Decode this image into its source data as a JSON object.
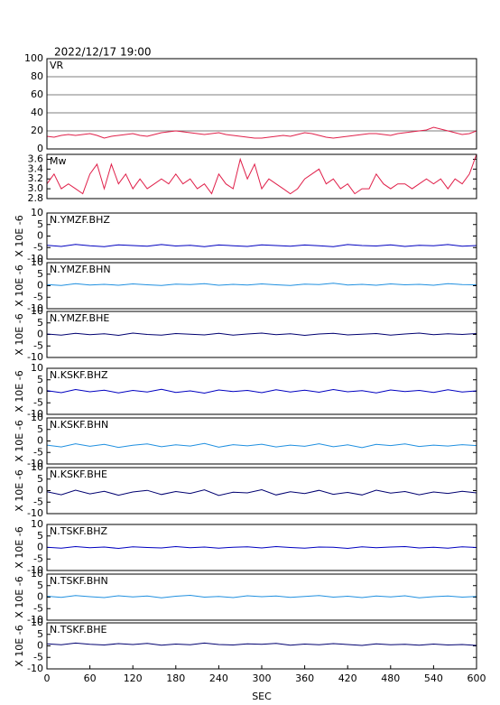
{
  "header": {
    "title": "2022/12/17 19:00"
  },
  "chart_data": [
    {
      "type": "line",
      "title": "VR",
      "color": "#e0204a",
      "grid": true,
      "xlim": [
        0,
        600
      ],
      "ylim": [
        0,
        100
      ],
      "yticks": [
        0,
        20,
        40,
        60,
        80,
        100
      ],
      "x": [
        0,
        10,
        20,
        30,
        40,
        50,
        60,
        70,
        80,
        90,
        100,
        110,
        120,
        130,
        140,
        150,
        160,
        170,
        180,
        190,
        200,
        210,
        220,
        230,
        240,
        250,
        260,
        270,
        280,
        290,
        300,
        310,
        320,
        330,
        340,
        350,
        360,
        370,
        380,
        390,
        400,
        410,
        420,
        430,
        440,
        450,
        460,
        470,
        480,
        490,
        500,
        510,
        520,
        530,
        540,
        550,
        560,
        570,
        580,
        590,
        600
      ],
      "values": [
        14,
        13,
        15,
        16,
        15,
        16,
        17,
        15,
        12,
        14,
        15,
        16,
        17,
        15,
        14,
        16,
        18,
        19,
        20,
        19,
        18,
        17,
        16,
        17,
        18,
        16,
        15,
        14,
        13,
        12,
        12,
        13,
        14,
        15,
        14,
        16,
        18,
        17,
        15,
        13,
        12,
        13,
        14,
        15,
        16,
        17,
        17,
        16,
        15,
        17,
        18,
        19,
        20,
        21,
        24,
        22,
        20,
        18,
        16,
        17,
        20
      ]
    },
    {
      "type": "line",
      "title": "Mw",
      "color": "#e0204a",
      "grid": false,
      "xlim": [
        0,
        600
      ],
      "ylim": [
        2.8,
        3.7
      ],
      "yticks": [
        2.8,
        {
          "value": 3,
          "label": "3.0"
        },
        3.2,
        3.4,
        3.6
      ],
      "x": [
        0,
        10,
        20,
        30,
        40,
        50,
        60,
        70,
        80,
        90,
        100,
        110,
        120,
        130,
        140,
        150,
        160,
        170,
        180,
        190,
        200,
        210,
        220,
        230,
        240,
        250,
        260,
        270,
        280,
        290,
        300,
        310,
        320,
        330,
        340,
        350,
        360,
        370,
        380,
        390,
        400,
        410,
        420,
        430,
        440,
        450,
        460,
        470,
        480,
        490,
        500,
        510,
        520,
        530,
        540,
        550,
        560,
        570,
        580,
        590,
        600
      ],
      "values": [
        3.1,
        3.3,
        3.0,
        3.1,
        3.0,
        2.9,
        3.3,
        3.5,
        3.0,
        3.5,
        3.1,
        3.3,
        3.0,
        3.2,
        3.0,
        3.1,
        3.2,
        3.1,
        3.3,
        3.1,
        3.2,
        3.0,
        3.1,
        2.9,
        3.3,
        3.1,
        3.0,
        3.6,
        3.2,
        3.5,
        3.0,
        3.2,
        3.1,
        3.0,
        2.9,
        3.0,
        3.2,
        3.3,
        3.4,
        3.1,
        3.2,
        3.0,
        3.1,
        2.9,
        3.0,
        3.0,
        3.3,
        3.1,
        3.0,
        3.1,
        3.1,
        3.0,
        3.1,
        3.2,
        3.1,
        3.2,
        3.0,
        3.2,
        3.1,
        3.3,
        3.7
      ]
    },
    {
      "type": "line",
      "title": "N.YMZF.BHZ",
      "ylabel": "X 10E -6",
      "color": "#0000c0",
      "xlim": [
        0,
        600
      ],
      "ylim": [
        -10,
        10
      ],
      "yticks": [
        -10,
        -5,
        0,
        5,
        10
      ],
      "x": [
        0,
        20,
        40,
        60,
        80,
        100,
        120,
        140,
        160,
        180,
        200,
        220,
        240,
        260,
        280,
        300,
        320,
        340,
        360,
        380,
        400,
        420,
        440,
        460,
        480,
        500,
        520,
        540,
        560,
        580,
        600
      ],
      "values": [
        -4,
        -4.5,
        -3.6,
        -4.2,
        -4.6,
        -3.8,
        -4.1,
        -4.4,
        -3.7,
        -4.3,
        -4,
        -4.6,
        -3.9,
        -4.2,
        -4.5,
        -3.8,
        -4.1,
        -4.4,
        -3.9,
        -4.2,
        -4.6,
        -3.7,
        -4.1,
        -4.3,
        -3.8,
        -4.5,
        -4,
        -4.2,
        -3.7,
        -4.4,
        -4.1
      ]
    },
    {
      "type": "line",
      "title": "N.YMZF.BHN",
      "ylabel": "X 10E -6",
      "color": "#2090e0",
      "xlim": [
        0,
        600
      ],
      "ylim": [
        -10,
        10
      ],
      "yticks": [
        -10,
        -5,
        0,
        5,
        10
      ],
      "x": [
        0,
        20,
        40,
        60,
        80,
        100,
        120,
        140,
        160,
        180,
        200,
        220,
        240,
        260,
        280,
        300,
        320,
        340,
        360,
        380,
        400,
        420,
        440,
        460,
        480,
        500,
        520,
        540,
        560,
        580,
        600
      ],
      "values": [
        0.5,
        0.1,
        0.9,
        0.3,
        0.6,
        0.2,
        0.8,
        0.4,
        0.1,
        0.7,
        0.5,
        0.9,
        0.2,
        0.6,
        0.3,
        0.8,
        0.4,
        0.1,
        0.7,
        0.5,
        1.1,
        0.3,
        0.6,
        0.2,
        0.8,
        0.4,
        0.6,
        0.2,
        0.9,
        0.5,
        0.4
      ]
    },
    {
      "type": "line",
      "title": "N.YMZF.BHE",
      "ylabel": "X 10E -6",
      "color": "#000070",
      "xlim": [
        0,
        600
      ],
      "ylim": [
        -10,
        10
      ],
      "yticks": [
        -10,
        -5,
        0,
        5,
        10
      ],
      "x": [
        0,
        20,
        40,
        60,
        80,
        100,
        120,
        140,
        160,
        180,
        200,
        220,
        240,
        260,
        280,
        300,
        320,
        340,
        360,
        380,
        400,
        420,
        440,
        460,
        480,
        500,
        520,
        540,
        560,
        580,
        600
      ],
      "values": [
        0.2,
        -0.3,
        0.5,
        -0.1,
        0.3,
        -0.4,
        0.6,
        0,
        -0.3,
        0.4,
        0.1,
        -0.2,
        0.5,
        -0.3,
        0.2,
        0.6,
        -0.1,
        0.3,
        -0.4,
        0.2,
        0.5,
        -0.2,
        0.1,
        0.4,
        -0.3,
        0.2,
        0.6,
        -0.1,
        0.3,
        0,
        0.4
      ]
    },
    {
      "type": "line",
      "title": "N.KSKF.BHZ",
      "ylabel": "X 10E -6",
      "color": "#0000c0",
      "xlim": [
        0,
        600
      ],
      "ylim": [
        -10,
        10
      ],
      "yticks": [
        -10,
        -5,
        0,
        5,
        10
      ],
      "x": [
        0,
        20,
        40,
        60,
        80,
        100,
        120,
        140,
        160,
        180,
        200,
        220,
        240,
        260,
        280,
        300,
        320,
        340,
        360,
        380,
        400,
        420,
        440,
        460,
        480,
        500,
        520,
        540,
        560,
        580,
        600
      ],
      "values": [
        0.3,
        -0.6,
        0.8,
        -0.2,
        0.5,
        -0.7,
        0.4,
        -0.3,
        0.9,
        -0.5,
        0.2,
        -0.8,
        0.6,
        -0.1,
        0.4,
        -0.6,
        0.7,
        -0.3,
        0.5,
        -0.4,
        0.8,
        -0.2,
        0.3,
        -0.7,
        0.6,
        -0.1,
        0.4,
        -0.5,
        0.7,
        -0.3,
        0.2
      ]
    },
    {
      "type": "line",
      "title": "N.KSKF.BHN",
      "ylabel": "X 10E -6",
      "color": "#2090e0",
      "xlim": [
        0,
        600
      ],
      "ylim": [
        -10,
        10
      ],
      "yticks": [
        -10,
        -5,
        0,
        5,
        10
      ],
      "x": [
        0,
        20,
        40,
        60,
        80,
        100,
        120,
        140,
        160,
        180,
        200,
        220,
        240,
        260,
        280,
        300,
        320,
        340,
        360,
        380,
        400,
        420,
        440,
        460,
        480,
        500,
        520,
        540,
        560,
        580,
        600
      ],
      "values": [
        -1.8,
        -2.6,
        -1.2,
        -2.3,
        -1.5,
        -2.8,
        -1.9,
        -1.3,
        -2.5,
        -1.7,
        -2.2,
        -1.1,
        -2.7,
        -1.6,
        -2.1,
        -1.4,
        -2.6,
        -1.8,
        -2.3,
        -1.2,
        -2.5,
        -1.7,
        -2.9,
        -1.5,
        -2.0,
        -1.3,
        -2.4,
        -1.8,
        -2.2,
        -1.6,
        -2.0
      ]
    },
    {
      "type": "line",
      "title": "N.KSKF.BHE",
      "ylabel": "X 10E -6",
      "color": "#000070",
      "xlim": [
        0,
        600
      ],
      "ylim": [
        -10,
        10
      ],
      "yticks": [
        -10,
        -5,
        0,
        5,
        10
      ],
      "x": [
        0,
        20,
        40,
        60,
        80,
        100,
        120,
        140,
        160,
        180,
        200,
        220,
        240,
        260,
        280,
        300,
        320,
        340,
        360,
        380,
        400,
        420,
        440,
        460,
        480,
        500,
        520,
        540,
        560,
        580,
        600
      ],
      "values": [
        -0.5,
        -1.8,
        0.2,
        -1.4,
        -0.3,
        -2.0,
        -0.6,
        0.1,
        -1.7,
        -0.4,
        -1.2,
        0.3,
        -2.1,
        -0.7,
        -1.0,
        0.4,
        -1.9,
        -0.5,
        -1.3,
        0.1,
        -1.6,
        -0.8,
        -1.9,
        0.2,
        -1.1,
        -0.4,
        -1.8,
        -0.6,
        -1.2,
        -0.3,
        -1.0
      ]
    },
    {
      "type": "line",
      "title": "N.TSKF.BHZ",
      "ylabel": "X 10E -6",
      "color": "#0000c0",
      "xlim": [
        0,
        600
      ],
      "ylim": [
        -10,
        10
      ],
      "yticks": [
        -10,
        -5,
        0,
        5,
        10
      ],
      "x": [
        0,
        20,
        40,
        60,
        80,
        100,
        120,
        140,
        160,
        180,
        200,
        220,
        240,
        260,
        280,
        300,
        320,
        340,
        360,
        380,
        400,
        420,
        440,
        460,
        480,
        500,
        520,
        540,
        560,
        580,
        600
      ],
      "values": [
        0.1,
        -0.3,
        0.4,
        -0.1,
        0.2,
        -0.4,
        0.3,
        0,
        -0.2,
        0.4,
        -0.1,
        0.2,
        -0.3,
        0.1,
        0.3,
        -0.2,
        0.4,
        0,
        -0.3,
        0.2,
        0.1,
        -0.4,
        0.3,
        -0.1,
        0.2,
        0.4,
        -0.2,
        0.1,
        -0.3,
        0.3,
        0
      ]
    },
    {
      "type": "line",
      "title": "N.TSKF.BHN",
      "ylabel": "X 10E -6",
      "color": "#2090e0",
      "xlim": [
        0,
        600
      ],
      "ylim": [
        -10,
        10
      ],
      "yticks": [
        -10,
        -5,
        0,
        5,
        10
      ],
      "x": [
        0,
        20,
        40,
        60,
        80,
        100,
        120,
        140,
        160,
        180,
        200,
        220,
        240,
        260,
        280,
        300,
        320,
        340,
        360,
        380,
        400,
        420,
        440,
        460,
        480,
        500,
        520,
        540,
        560,
        580,
        600
      ],
      "values": [
        0.4,
        -0.1,
        0.7,
        0.2,
        -0.2,
        0.6,
        0.1,
        0.5,
        -0.3,
        0.4,
        0.8,
        0,
        0.3,
        -0.2,
        0.6,
        0.2,
        0.5,
        -0.1,
        0.3,
        0.7,
        0,
        0.4,
        -0.2,
        0.5,
        0.1,
        0.6,
        -0.3,
        0.2,
        0.5,
        0,
        0.3
      ]
    },
    {
      "type": "line",
      "title": "N.TSKF.BHE",
      "ylabel": "X 10E -6",
      "color": "#000070",
      "xlim": [
        0,
        600
      ],
      "ylim": [
        -10,
        10
      ],
      "yticks": [
        -10,
        -5,
        0,
        5,
        10
      ],
      "x": [
        0,
        20,
        40,
        60,
        80,
        100,
        120,
        140,
        160,
        180,
        200,
        220,
        240,
        260,
        280,
        300,
        320,
        340,
        360,
        380,
        400,
        420,
        440,
        460,
        480,
        500,
        520,
        540,
        560,
        580,
        600
      ],
      "values": [
        0.9,
        0.5,
        1.2,
        0.7,
        0.4,
        1.0,
        0.6,
        1.1,
        0.3,
        0.8,
        0.5,
        1.2,
        0.6,
        0.4,
        0.9,
        0.7,
        1.1,
        0.3,
        0.8,
        0.5,
        1.0,
        0.6,
        0.2,
        0.9,
        0.5,
        0.7,
        0.3,
        0.8,
        0.4,
        0.6,
        0.2
      ],
      "xlabel": "SEC",
      "xticks": [
        0,
        60,
        120,
        180,
        240,
        300,
        360,
        420,
        480,
        540,
        600
      ]
    }
  ]
}
